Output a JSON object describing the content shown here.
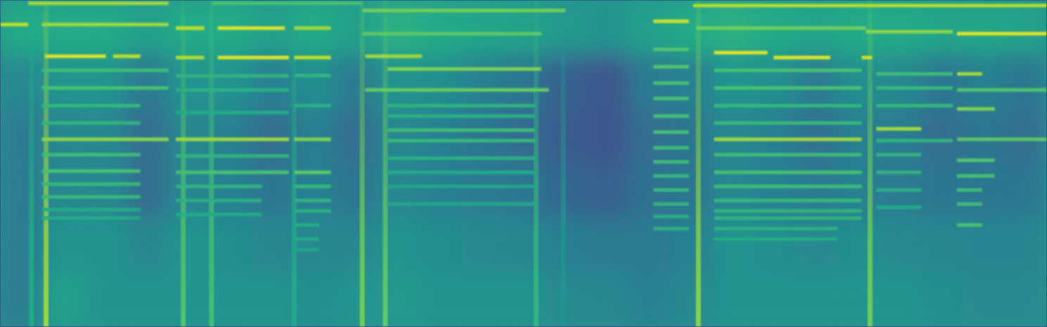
{
  "chart_data": {
    "type": "spectrogram",
    "tick_labels": false,
    "color": "viridis",
    "color_range": [
      0,
      1
    ],
    "xlim": [
      0,
      100
    ],
    "ylim": [
      0,
      100
    ],
    "x_edges": [
      0,
      4,
      8,
      12,
      16,
      20,
      24,
      28,
      32,
      36,
      40,
      44,
      48,
      52,
      56,
      60,
      64,
      68,
      72,
      76,
      80,
      84,
      88,
      92,
      96,
      100
    ],
    "y_edges": [
      100,
      83.3,
      66.7,
      50,
      33.3,
      16.7,
      0
    ],
    "cells": [
      [
        0.6,
        0.6,
        0.6,
        0.55,
        0.6,
        0.6,
        0.55,
        0.6,
        0.55,
        0.62,
        0.6,
        0.58,
        0.56,
        0.52,
        0.5,
        0.55,
        0.6,
        0.62,
        0.6,
        0.58,
        0.6,
        0.6,
        0.58,
        0.58,
        0.56
      ],
      [
        0.45,
        0.5,
        0.5,
        0.4,
        0.5,
        0.5,
        0.42,
        0.48,
        0.4,
        0.5,
        0.48,
        0.42,
        0.38,
        0.3,
        0.26,
        0.4,
        0.42,
        0.5,
        0.48,
        0.4,
        0.48,
        0.45,
        0.38,
        0.42,
        0.38
      ],
      [
        0.4,
        0.45,
        0.45,
        0.35,
        0.45,
        0.42,
        0.35,
        0.42,
        0.35,
        0.45,
        0.42,
        0.38,
        0.34,
        0.28,
        0.26,
        0.35,
        0.38,
        0.45,
        0.42,
        0.36,
        0.42,
        0.4,
        0.35,
        0.38,
        0.35
      ],
      [
        0.4,
        0.45,
        0.45,
        0.35,
        0.45,
        0.42,
        0.38,
        0.42,
        0.38,
        0.45,
        0.42,
        0.4,
        0.38,
        0.32,
        0.3,
        0.36,
        0.38,
        0.45,
        0.42,
        0.4,
        0.42,
        0.4,
        0.38,
        0.38,
        0.38
      ],
      [
        0.4,
        0.5,
        0.5,
        0.45,
        0.5,
        0.48,
        0.45,
        0.45,
        0.45,
        0.5,
        0.48,
        0.46,
        0.45,
        0.42,
        0.4,
        0.4,
        0.42,
        0.5,
        0.48,
        0.46,
        0.48,
        0.46,
        0.45,
        0.44,
        0.44
      ],
      [
        0.4,
        0.55,
        0.5,
        0.5,
        0.5,
        0.5,
        0.5,
        0.48,
        0.5,
        0.52,
        0.5,
        0.5,
        0.5,
        0.46,
        0.45,
        0.42,
        0.45,
        0.5,
        0.5,
        0.5,
        0.5,
        0.5,
        0.48,
        0.46,
        0.46
      ]
    ],
    "onsets": [
      [
        3.0,
        0.6
      ],
      [
        4.4,
        0.85
      ],
      [
        17.5,
        0.72
      ],
      [
        20.2,
        0.7
      ],
      [
        28.1,
        0.6
      ],
      [
        34.6,
        0.78
      ],
      [
        36.8,
        0.75
      ],
      [
        51.2,
        0.65
      ],
      [
        53.8,
        0.5
      ],
      [
        66.7,
        0.82
      ],
      [
        83.1,
        0.78
      ]
    ],
    "lines": [
      [
        0,
        2.7,
        92.5,
        0.9
      ],
      [
        2.7,
        16.1,
        99.0,
        0.85
      ],
      [
        20.2,
        34.6,
        99.0,
        0.7
      ],
      [
        4.0,
        16.1,
        92.5,
        0.85
      ],
      [
        4.3,
        10.1,
        82.8,
        0.95
      ],
      [
        10.8,
        13.4,
        82.8,
        0.9
      ],
      [
        4.0,
        16.1,
        78.5,
        0.68
      ],
      [
        4.0,
        16.1,
        73.1,
        0.7
      ],
      [
        4.0,
        13.4,
        67.7,
        0.66
      ],
      [
        4.0,
        13.4,
        62.4,
        0.64
      ],
      [
        4.0,
        16.1,
        57.4,
        0.82
      ],
      [
        4.0,
        13.4,
        52.7,
        0.68
      ],
      [
        4.0,
        13.4,
        47.7,
        0.7
      ],
      [
        4.0,
        13.4,
        43.7,
        0.66
      ],
      [
        4.0,
        13.4,
        39.8,
        0.66
      ],
      [
        4.0,
        13.4,
        35.9,
        0.6
      ],
      [
        4.0,
        13.4,
        33.3,
        0.6
      ],
      [
        16.8,
        19.5,
        91.4,
        0.9
      ],
      [
        20.8,
        27.2,
        91.4,
        0.95
      ],
      [
        16.8,
        19.5,
        82.4,
        0.88
      ],
      [
        20.8,
        27.6,
        82.4,
        0.95
      ],
      [
        16.8,
        27.6,
        76.8,
        0.64
      ],
      [
        16.8,
        27.6,
        72.5,
        0.62
      ],
      [
        16.8,
        27.6,
        65.6,
        0.6
      ],
      [
        16.8,
        27.6,
        57.4,
        0.85
      ],
      [
        16.8,
        27.6,
        52.3,
        0.64
      ],
      [
        16.8,
        27.6,
        47.3,
        0.7
      ],
      [
        16.8,
        25.0,
        43.0,
        0.64
      ],
      [
        16.8,
        25.0,
        38.7,
        0.62
      ],
      [
        16.8,
        25.0,
        34.4,
        0.6
      ],
      [
        28.1,
        31.6,
        91.4,
        0.85
      ],
      [
        28.1,
        31.6,
        82.4,
        0.9
      ],
      [
        28.1,
        31.6,
        76.9,
        0.65
      ],
      [
        28.1,
        31.6,
        67.7,
        0.62
      ],
      [
        28.1,
        31.6,
        57.4,
        0.8
      ],
      [
        28.1,
        31.6,
        47.3,
        0.74
      ],
      [
        28.1,
        31.6,
        43.0,
        0.66
      ],
      [
        28.1,
        31.6,
        38.7,
        0.64
      ],
      [
        28.1,
        31.6,
        35.5,
        0.62
      ],
      [
        28.1,
        30.5,
        31.2,
        0.6
      ],
      [
        28.1,
        30.5,
        26.9,
        0.6
      ],
      [
        28.1,
        30.5,
        23.7,
        0.58
      ],
      [
        34.6,
        54.0,
        96.8,
        0.78
      ],
      [
        34.6,
        51.7,
        89.7,
        0.74
      ],
      [
        34.9,
        40.3,
        82.8,
        0.85
      ],
      [
        37.0,
        51.7,
        78.9,
        0.8
      ],
      [
        34.9,
        52.4,
        72.5,
        0.76
      ],
      [
        37.0,
        51.1,
        67.7,
        0.64
      ],
      [
        37.0,
        51.1,
        64.5,
        0.62
      ],
      [
        37.0,
        51.1,
        60.2,
        0.68
      ],
      [
        37.0,
        51.1,
        57.0,
        0.66
      ],
      [
        37.0,
        51.1,
        51.6,
        0.62
      ],
      [
        37.0,
        51.1,
        47.3,
        0.6
      ],
      [
        37.0,
        51.1,
        43.0,
        0.58
      ],
      [
        37.0,
        51.1,
        37.6,
        0.58
      ],
      [
        62.4,
        65.8,
        93.5,
        0.92
      ],
      [
        62.4,
        65.8,
        84.9,
        0.72
      ],
      [
        62.4,
        65.8,
        79.6,
        0.72
      ],
      [
        62.4,
        65.8,
        74.6,
        0.7
      ],
      [
        62.4,
        65.8,
        69.9,
        0.7
      ],
      [
        62.4,
        65.8,
        64.5,
        0.7
      ],
      [
        62.4,
        65.8,
        59.6,
        0.7
      ],
      [
        62.4,
        65.8,
        54.8,
        0.68
      ],
      [
        62.4,
        65.8,
        50.5,
        0.68
      ],
      [
        62.4,
        65.8,
        46.2,
        0.66
      ],
      [
        62.4,
        65.8,
        41.9,
        0.66
      ],
      [
        62.4,
        65.8,
        37.6,
        0.64
      ],
      [
        62.4,
        65.8,
        33.8,
        0.62
      ],
      [
        62.4,
        65.8,
        30.1,
        0.62
      ],
      [
        66.2,
        100,
        98.3,
        0.88
      ],
      [
        66.5,
        82.7,
        91.4,
        0.78
      ],
      [
        68.2,
        73.3,
        83.9,
        0.95
      ],
      [
        73.9,
        79.3,
        82.4,
        0.95
      ],
      [
        68.2,
        82.3,
        78.5,
        0.7
      ],
      [
        68.2,
        82.3,
        73.1,
        0.7
      ],
      [
        68.2,
        82.3,
        67.7,
        0.66
      ],
      [
        68.2,
        82.3,
        62.4,
        0.66
      ],
      [
        68.2,
        82.3,
        57.4,
        0.85
      ],
      [
        68.2,
        82.3,
        52.7,
        0.68
      ],
      [
        68.2,
        82.3,
        47.3,
        0.7
      ],
      [
        68.2,
        82.3,
        43.0,
        0.68
      ],
      [
        68.2,
        82.3,
        38.7,
        0.66
      ],
      [
        68.2,
        82.3,
        35.5,
        0.64
      ],
      [
        68.2,
        82.3,
        33.3,
        0.64
      ],
      [
        68.2,
        80.0,
        30.1,
        0.62
      ],
      [
        68.2,
        80.0,
        26.9,
        0.6
      ],
      [
        82.7,
        91.0,
        90.3,
        0.82
      ],
      [
        82.3,
        83.3,
        82.4,
        0.92
      ],
      [
        83.7,
        91.0,
        77.4,
        0.68
      ],
      [
        83.7,
        91.0,
        73.1,
        0.66
      ],
      [
        83.7,
        91.0,
        67.7,
        0.66
      ],
      [
        83.7,
        88.0,
        60.6,
        0.85
      ],
      [
        83.7,
        91.0,
        57.0,
        0.64
      ],
      [
        83.7,
        88.0,
        52.7,
        0.64
      ],
      [
        83.7,
        88.0,
        47.3,
        0.64
      ],
      [
        83.7,
        88.0,
        41.9,
        0.62
      ],
      [
        83.7,
        88.0,
        36.6,
        0.6
      ],
      [
        91.4,
        100,
        89.7,
        0.95
      ],
      [
        91.4,
        93.8,
        77.4,
        0.85
      ],
      [
        91.4,
        100,
        72.5,
        0.72
      ],
      [
        91.4,
        95.0,
        66.7,
        0.8
      ],
      [
        91.4,
        100,
        57.4,
        0.74
      ],
      [
        91.4,
        95.0,
        51.0,
        0.72
      ],
      [
        91.4,
        95.0,
        46.2,
        0.7
      ],
      [
        91.4,
        93.8,
        41.9,
        0.68
      ],
      [
        91.4,
        93.8,
        37.6,
        0.68
      ],
      [
        91.4,
        93.8,
        31.2,
        0.7
      ]
    ]
  }
}
